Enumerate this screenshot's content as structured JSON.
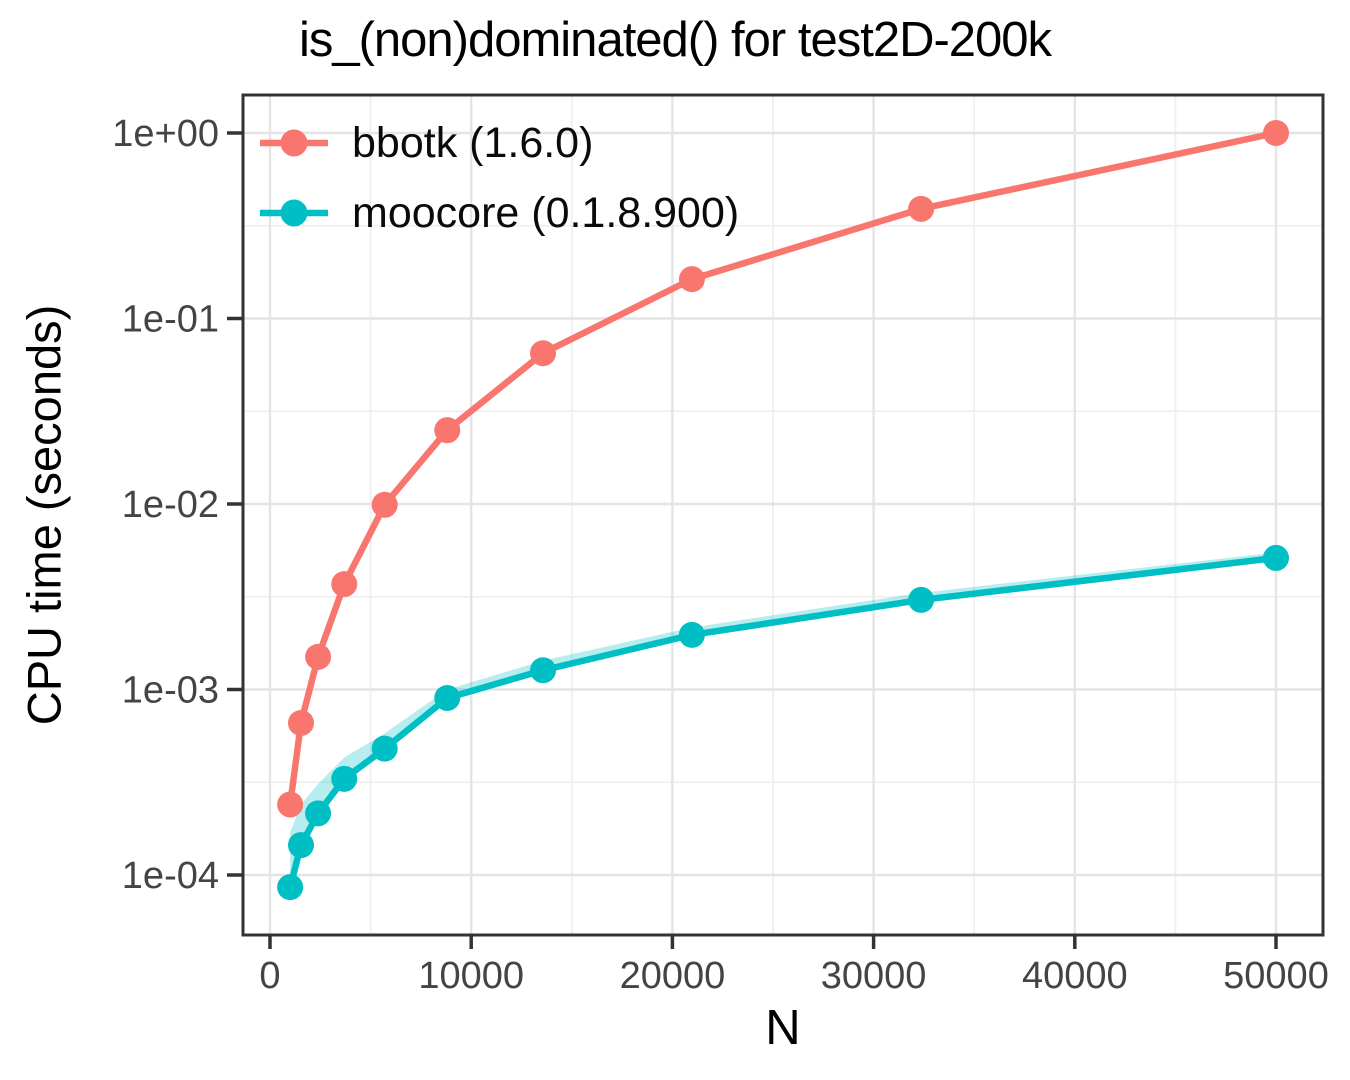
{
  "chart_data": {
    "type": "line",
    "title": "is_(non)dominated() for test2D-200k",
    "xlabel": "N",
    "ylabel": "CPU time (seconds)",
    "x_axis": {
      "tick_values": [
        0,
        10000,
        20000,
        30000,
        40000,
        50000
      ],
      "tick_labels": [
        "0",
        "10000",
        "20000",
        "30000",
        "40000",
        "50000"
      ],
      "minor_tick_values": [
        5000,
        15000,
        25000,
        35000,
        45000
      ],
      "range": [
        -1350,
        52350
      ],
      "scale": "linear"
    },
    "y_axis": {
      "tick_values": [
        1,
        0.1,
        0.01,
        0.001,
        0.0001
      ],
      "tick_labels": [
        "1e+00",
        "1e-01",
        "1e-02",
        "1e-03",
        "1e-04"
      ],
      "minor_exponents": [
        -0.5,
        -1.5,
        -2.5,
        -3.5
      ],
      "range": [
        4.7e-05,
        1.6
      ],
      "scale": "log10"
    },
    "grid": true,
    "legend_position": "inside-top-left",
    "x": [
      1000,
      1540,
      2390,
      3690,
      5700,
      8810,
      13570,
      20970,
      32360,
      50000
    ],
    "series": [
      {
        "name": "bbotk",
        "label": "bbotk (1.6.0)",
        "color": "#F8766D",
        "values": [
          0.00024,
          0.00066,
          0.0015,
          0.0037,
          0.0099,
          0.025,
          0.065,
          0.163,
          0.39,
          1.0
        ],
        "ribbon_upper": [
          0.00028,
          0.0007,
          0.00156,
          0.0038,
          0.0101,
          0.0255,
          0.066,
          0.166,
          0.395,
          1.01
        ],
        "ribbon_lower": [
          0.00022,
          0.00063,
          0.00145,
          0.0036,
          0.0097,
          0.0246,
          0.0638,
          0.16,
          0.385,
          0.99
        ]
      },
      {
        "name": "moocore",
        "label": "moocore (0.1.8.900)",
        "color": "#00BFC4",
        "values": [
          8.6e-05,
          0.000145,
          0.000215,
          0.00033,
          0.00048,
          0.0009,
          0.00127,
          0.00197,
          0.00304,
          0.00512
        ],
        "ribbon_upper": [
          0.00017,
          0.00024,
          0.00031,
          0.00043,
          0.00058,
          0.001,
          0.00143,
          0.00216,
          0.00332,
          0.00548
        ],
        "ribbon_lower": [
          8.1e-05,
          0.000139,
          0.000207,
          0.000318,
          0.000462,
          0.00086,
          0.00122,
          0.0019,
          0.00294,
          0.00498
        ]
      }
    ],
    "style": {
      "grid_major_color": "#E4E4E4",
      "grid_minor_color": "#EFEFEF",
      "panel_border_color": "#333333",
      "tick_color": "#333333",
      "tick_label_color": "#444444",
      "ribbon_opacity": 0.28
    }
  }
}
